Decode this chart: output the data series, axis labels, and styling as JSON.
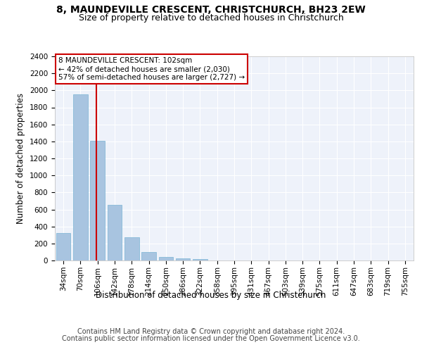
{
  "title": "8, MAUNDEVILLE CRESCENT, CHRISTCHURCH, BH23 2EW",
  "subtitle": "Size of property relative to detached houses in Christchurch",
  "xlabel": "Distribution of detached houses by size in Christchurch",
  "ylabel": "Number of detached properties",
  "categories": [
    "34sqm",
    "70sqm",
    "106sqm",
    "142sqm",
    "178sqm",
    "214sqm",
    "250sqm",
    "286sqm",
    "322sqm",
    "358sqm",
    "395sqm",
    "431sqm",
    "467sqm",
    "503sqm",
    "539sqm",
    "575sqm",
    "611sqm",
    "647sqm",
    "683sqm",
    "719sqm",
    "755sqm"
  ],
  "values": [
    320,
    1950,
    1410,
    650,
    275,
    100,
    45,
    28,
    18,
    0,
    0,
    0,
    0,
    0,
    0,
    0,
    0,
    0,
    0,
    0,
    0
  ],
  "bar_color": "#a8c4e0",
  "bar_edge_color": "#7ab4d4",
  "marker_label": "8 MAUNDEVILLE CRESCENT: 102sqm",
  "annotation_line1": "← 42% of detached houses are smaller (2,030)",
  "annotation_line2": "57% of semi-detached houses are larger (2,727) →",
  "annotation_box_color": "#ffffff",
  "annotation_box_edge_color": "#cc0000",
  "vline_color": "#cc0000",
  "vline_x": 1.925,
  "ylim": [
    0,
    2400
  ],
  "yticks": [
    0,
    200,
    400,
    600,
    800,
    1000,
    1200,
    1400,
    1600,
    1800,
    2000,
    2200,
    2400
  ],
  "background_color": "#eef2fa",
  "grid_color": "#ffffff",
  "footer_line1": "Contains HM Land Registry data © Crown copyright and database right 2024.",
  "footer_line2": "Contains public sector information licensed under the Open Government Licence v3.0.",
  "title_fontsize": 10,
  "subtitle_fontsize": 9,
  "axis_label_fontsize": 8.5,
  "tick_fontsize": 7.5,
  "annotation_fontsize": 7.5,
  "footer_fontsize": 7
}
